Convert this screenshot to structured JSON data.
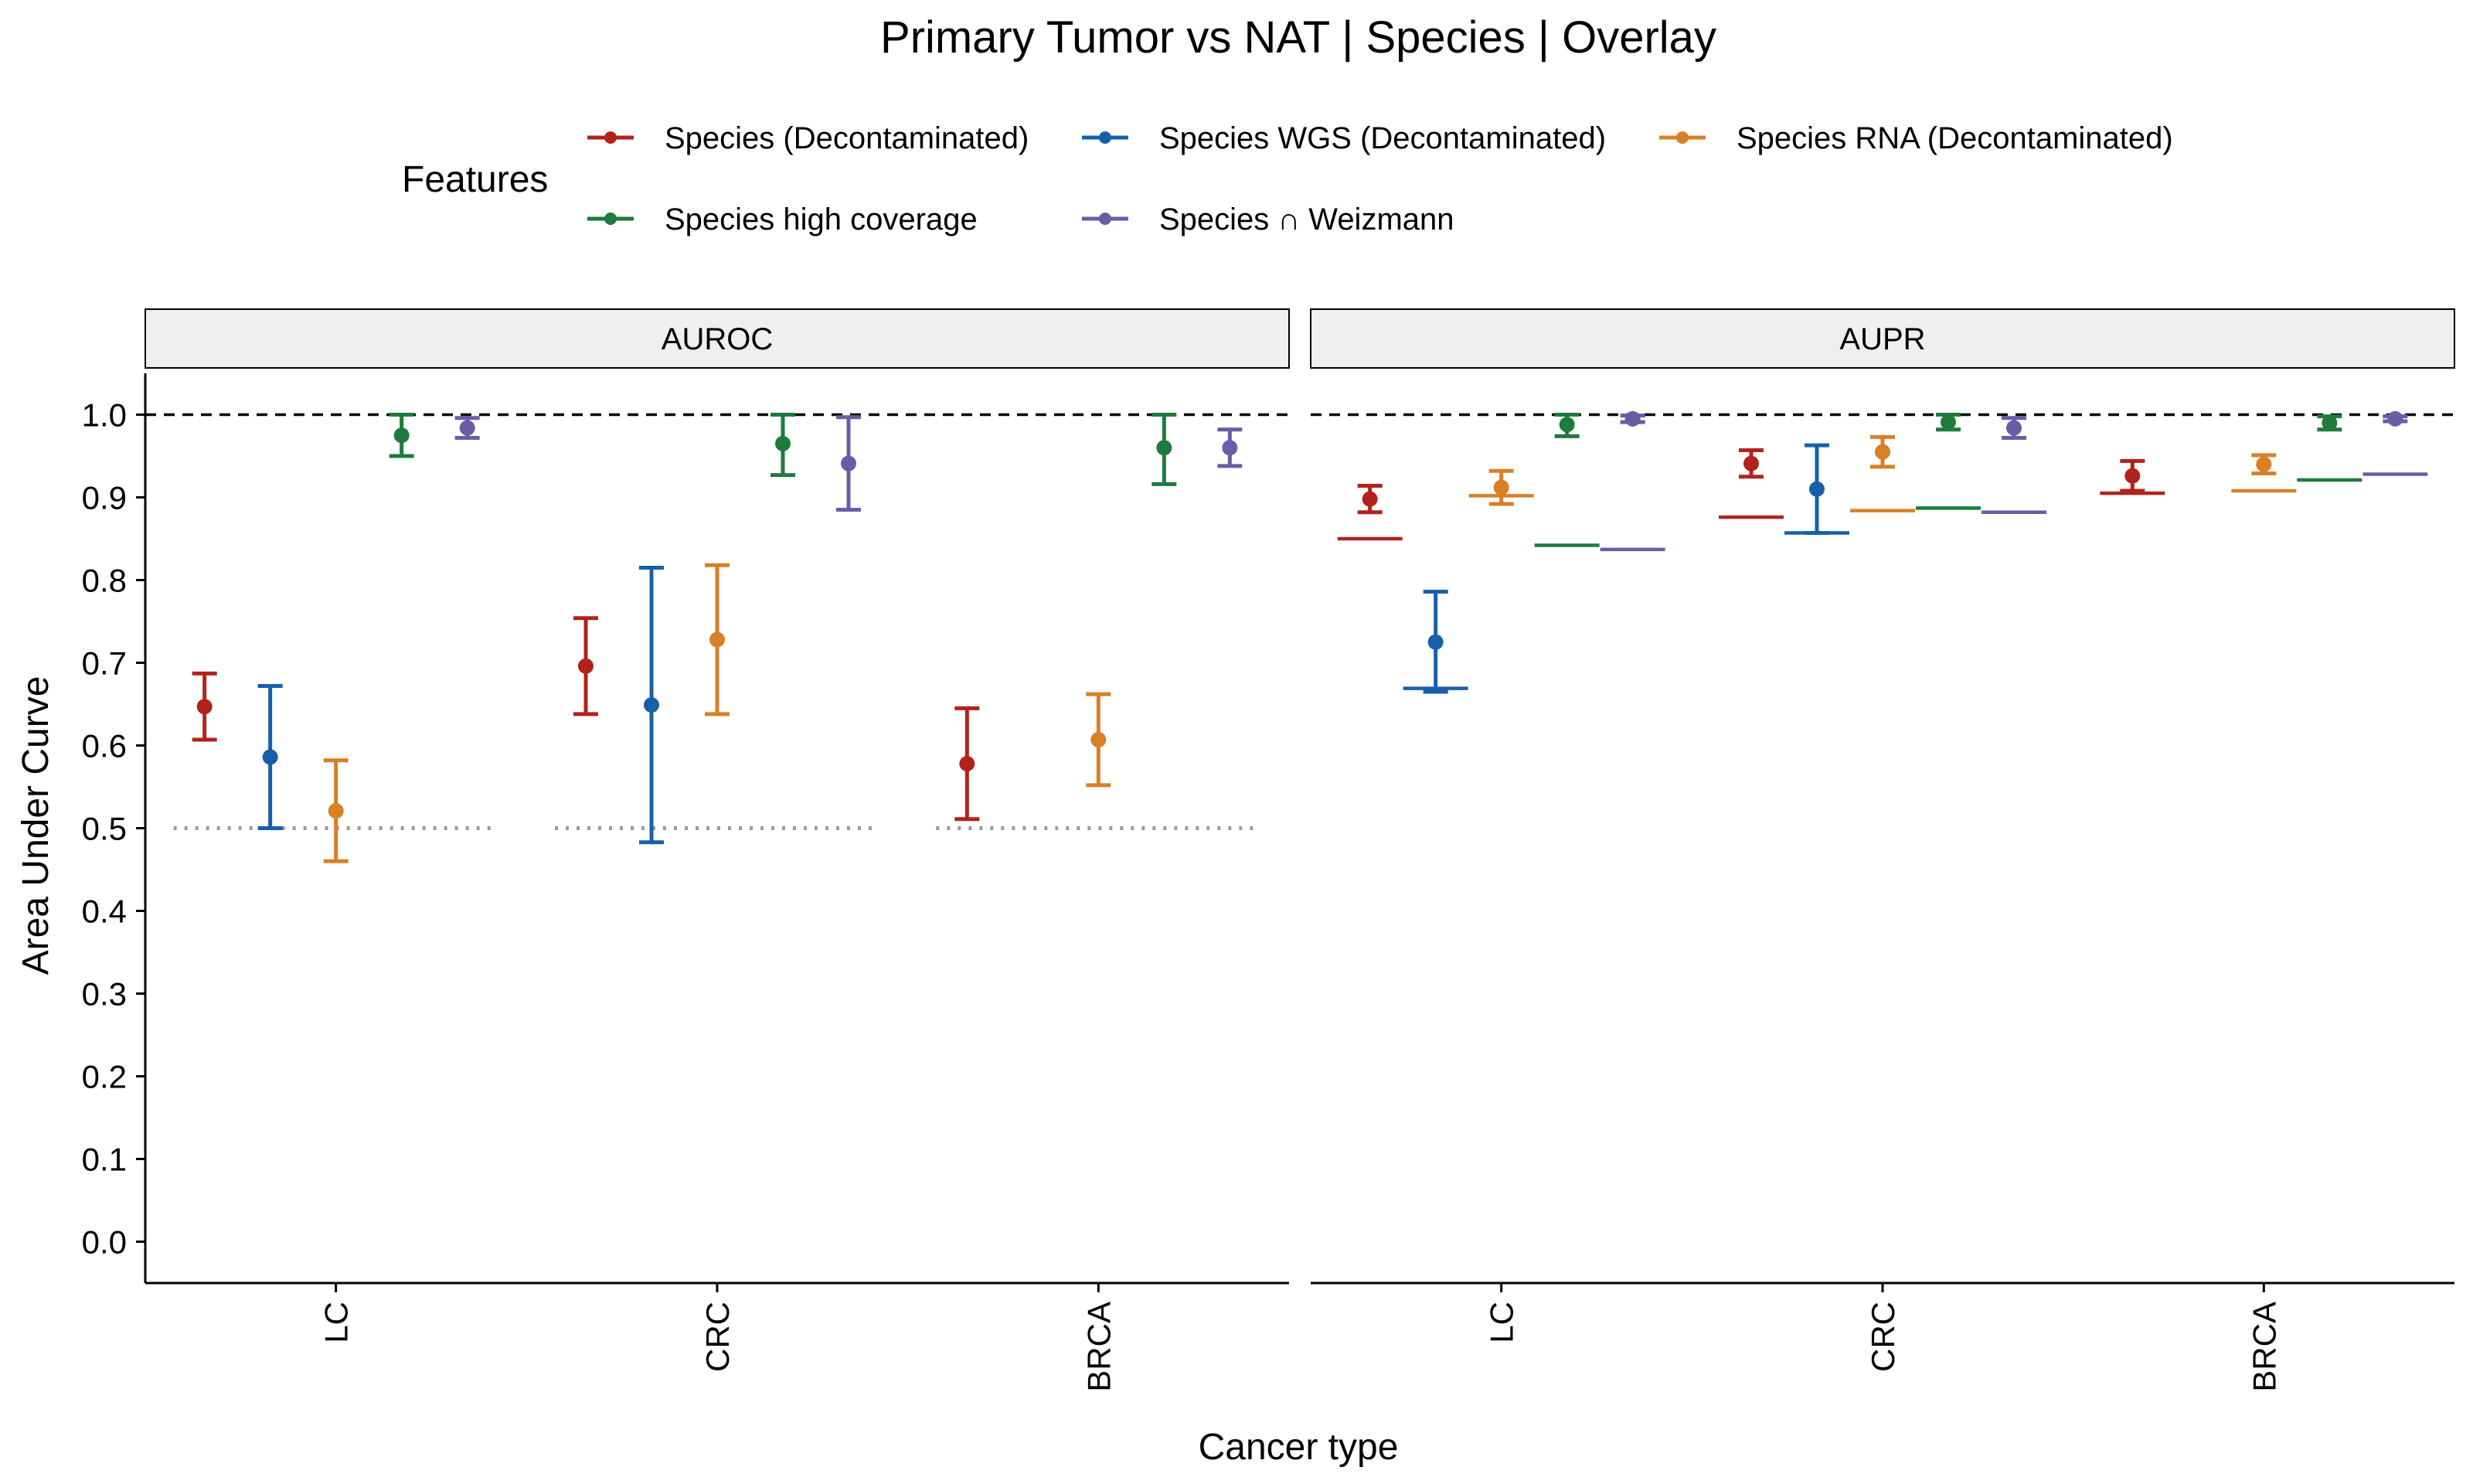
{
  "chart_data": {
    "type": "scatter",
    "title": "Primary Tumor vs NAT | Species | Overlay",
    "xlabel": "Cancer type",
    "ylabel": "Area Under Curve",
    "ylim": [
      0,
      1
    ],
    "yticks": [
      "0.0",
      "0.1",
      "0.2",
      "0.3",
      "0.4",
      "0.5",
      "0.6",
      "0.7",
      "0.8",
      "0.9",
      "1.0"
    ],
    "categories": [
      "LC",
      "CRC",
      "BRCA"
    ],
    "legend": {
      "title": "Features",
      "position": "top",
      "entries": [
        {
          "name": "Species (Decontaminated)",
          "color": "#B2221D"
        },
        {
          "name": "Species WGS (Decontaminated)",
          "color": "#1760A9"
        },
        {
          "name": "Species RNA (Decontaminated)",
          "color": "#D97F26"
        },
        {
          "name": "Species high coverage",
          "color": "#1F7A3E"
        },
        {
          "name": "Species ∩ Weizmann",
          "color": "#6B5CA5"
        }
      ]
    },
    "reference_line": 1.0,
    "panels": [
      {
        "label": "AUROC",
        "chance_line": 0.5,
        "series": [
          {
            "name": "Species (Decontaminated)",
            "points": [
              {
                "category": "LC",
                "value": 0.647,
                "lower": 0.607,
                "upper": 0.687
              },
              {
                "category": "CRC",
                "value": 0.696,
                "lower": 0.638,
                "upper": 0.754
              },
              {
                "category": "BRCA",
                "value": 0.578,
                "lower": 0.511,
                "upper": 0.645
              }
            ]
          },
          {
            "name": "Species WGS (Decontaminated)",
            "points": [
              {
                "category": "LC",
                "value": 0.586,
                "lower": 0.5,
                "upper": 0.672
              },
              {
                "category": "CRC",
                "value": 0.649,
                "lower": 0.483,
                "upper": 0.815
              }
            ]
          },
          {
            "name": "Species RNA (Decontaminated)",
            "points": [
              {
                "category": "LC",
                "value": 0.521,
                "lower": 0.46,
                "upper": 0.582
              },
              {
                "category": "CRC",
                "value": 0.728,
                "lower": 0.638,
                "upper": 0.818
              },
              {
                "category": "BRCA",
                "value": 0.607,
                "lower": 0.552,
                "upper": 0.662
              }
            ]
          },
          {
            "name": "Species high coverage",
            "points": [
              {
                "category": "LC",
                "value": 0.975,
                "lower": 0.95,
                "upper": 1.0
              },
              {
                "category": "CRC",
                "value": 0.965,
                "lower": 0.927,
                "upper": 1.0
              },
              {
                "category": "BRCA",
                "value": 0.96,
                "lower": 0.916,
                "upper": 1.0
              }
            ]
          },
          {
            "name": "Species ∩ Weizmann",
            "points": [
              {
                "category": "LC",
                "value": 0.984,
                "lower": 0.972,
                "upper": 0.996
              },
              {
                "category": "CRC",
                "value": 0.941,
                "lower": 0.885,
                "upper": 0.997
              },
              {
                "category": "BRCA",
                "value": 0.96,
                "lower": 0.938,
                "upper": 0.982
              }
            ]
          }
        ]
      },
      {
        "label": "AUPR",
        "series": [
          {
            "name": "Species (Decontaminated)",
            "points": [
              {
                "category": "LC",
                "value": 0.898,
                "lower": 0.882,
                "upper": 0.914,
                "baseline": 0.85
              },
              {
                "category": "CRC",
                "value": 0.941,
                "lower": 0.925,
                "upper": 0.957,
                "baseline": 0.876
              },
              {
                "category": "BRCA",
                "value": 0.926,
                "lower": 0.908,
                "upper": 0.944,
                "baseline": 0.905
              }
            ]
          },
          {
            "name": "Species WGS (Decontaminated)",
            "points": [
              {
                "category": "LC",
                "value": 0.725,
                "lower": 0.665,
                "upper": 0.786,
                "baseline": 0.669
              },
              {
                "category": "CRC",
                "value": 0.91,
                "lower": 0.857,
                "upper": 0.963,
                "baseline": 0.857
              }
            ]
          },
          {
            "name": "Species RNA (Decontaminated)",
            "points": [
              {
                "category": "LC",
                "value": 0.912,
                "lower": 0.892,
                "upper": 0.932,
                "baseline": 0.902
              },
              {
                "category": "CRC",
                "value": 0.955,
                "lower": 0.937,
                "upper": 0.973,
                "baseline": 0.884
              },
              {
                "category": "BRCA",
                "value": 0.94,
                "lower": 0.929,
                "upper": 0.951,
                "baseline": 0.908
              }
            ]
          },
          {
            "name": "Species high coverage",
            "points": [
              {
                "category": "LC",
                "value": 0.988,
                "lower": 0.974,
                "upper": 1.0,
                "baseline": 0.842
              },
              {
                "category": "CRC",
                "value": 0.991,
                "lower": 0.982,
                "upper": 1.0,
                "baseline": 0.887
              },
              {
                "category": "BRCA",
                "value": 0.99,
                "lower": 0.982,
                "upper": 0.998,
                "baseline": 0.921
              }
            ]
          },
          {
            "name": "Species ∩ Weizmann",
            "points": [
              {
                "category": "LC",
                "value": 0.995,
                "lower": 0.991,
                "upper": 0.999,
                "baseline": 0.837
              },
              {
                "category": "CRC",
                "value": 0.984,
                "lower": 0.972,
                "upper": 0.996,
                "baseline": 0.882
              },
              {
                "category": "BRCA",
                "value": 0.995,
                "lower": 0.992,
                "upper": 0.998,
                "baseline": 0.928
              }
            ]
          }
        ]
      }
    ]
  }
}
